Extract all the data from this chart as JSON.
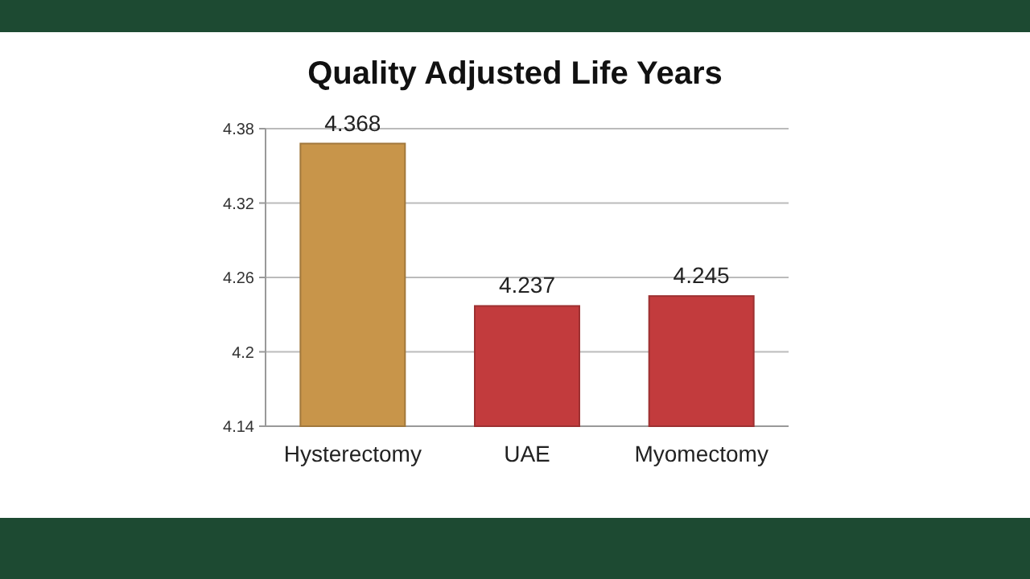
{
  "chart_data": {
    "type": "bar",
    "title": "Quality Adjusted Life Years",
    "categories": [
      "Hysterectomy",
      "UAE",
      "Myomectomy"
    ],
    "values": [
      4.368,
      4.237,
      4.245
    ],
    "colors": [
      "#c8954a",
      "#c23b3d",
      "#c23b3d"
    ],
    "ylim": [
      4.14,
      4.38
    ],
    "yticks": [
      4.14,
      4.2,
      4.26,
      4.32,
      4.38
    ],
    "grid": "y",
    "data_labels": true
  }
}
